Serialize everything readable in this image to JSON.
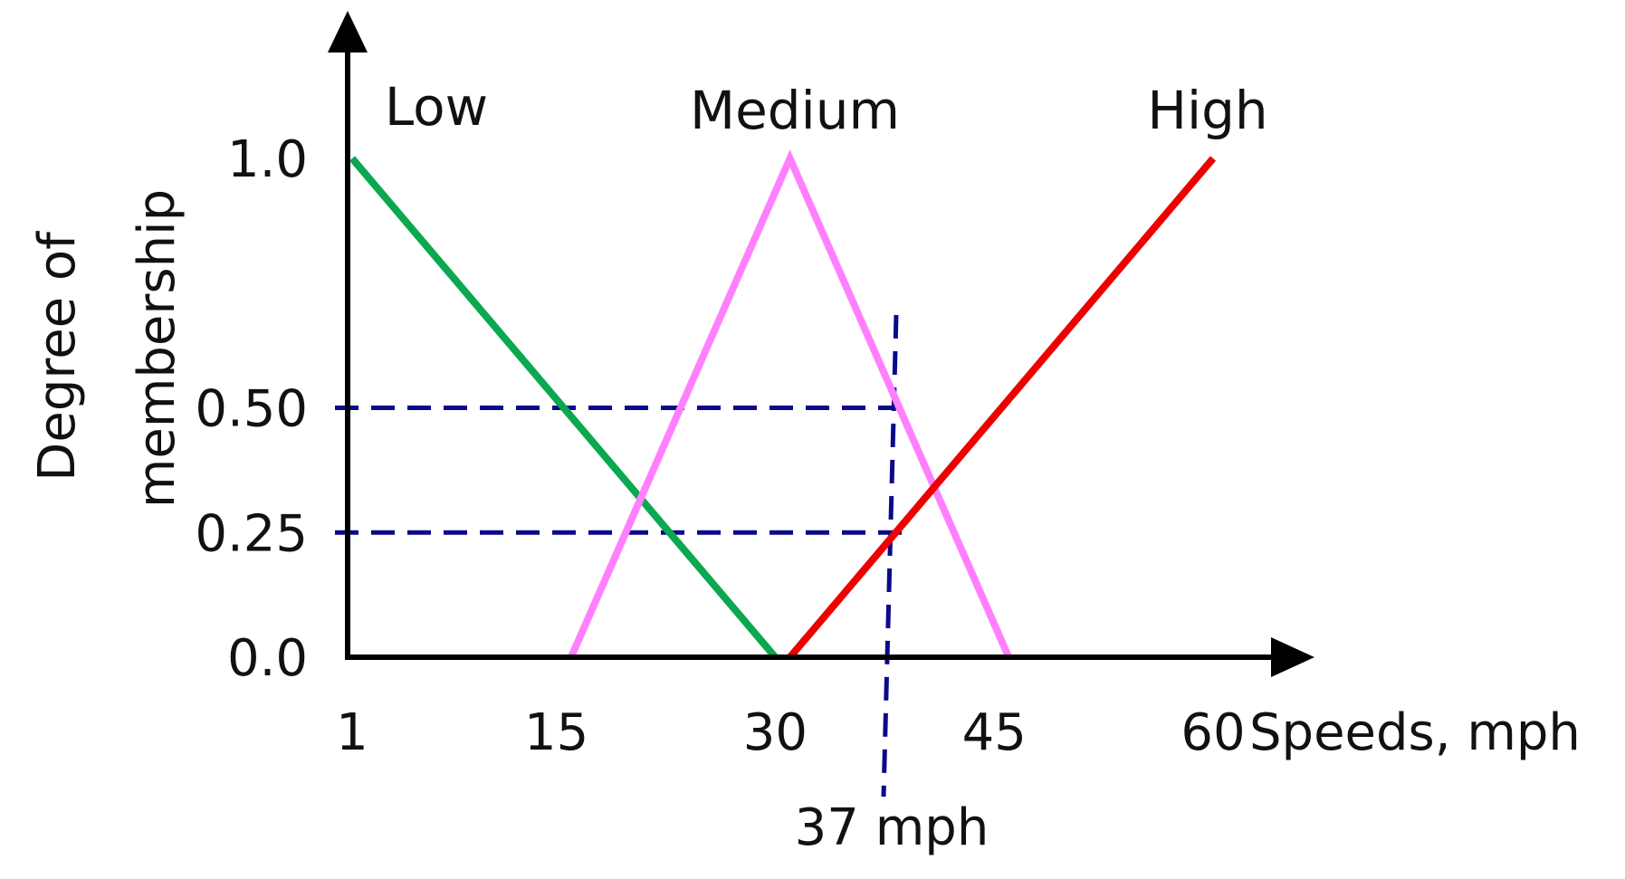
{
  "chart_data": {
    "type": "line",
    "title": "",
    "ylabel_lines": [
      "Degree of",
      "membership"
    ],
    "xlabel": "Speeds, mph",
    "x_ticks": [
      {
        "value": 1,
        "label": "1"
      },
      {
        "value": 15,
        "label": "15"
      },
      {
        "value": 30,
        "label": "30"
      },
      {
        "value": 45,
        "label": "45"
      },
      {
        "value": 60,
        "label": "60"
      }
    ],
    "y_ticks": [
      {
        "value": 0.0,
        "label": "0.0"
      },
      {
        "value": 0.25,
        "label": "0.25"
      },
      {
        "value": 0.5,
        "label": "0.50"
      },
      {
        "value": 1.0,
        "label": "1.0"
      }
    ],
    "xlim": [
      1,
      65
    ],
    "ylim": [
      0,
      1
    ],
    "grid": false,
    "series": [
      {
        "name": "Low",
        "color": "#0aa84f",
        "points": [
          [
            1,
            1.0
          ],
          [
            30,
            0.0
          ]
        ]
      },
      {
        "name": "Medium",
        "color": "#ff80ff",
        "points": [
          [
            16,
            0.0
          ],
          [
            31,
            1.0
          ],
          [
            46,
            0.0
          ]
        ]
      },
      {
        "name": "High",
        "color": "#ee0000",
        "points": [
          [
            31,
            0.0
          ],
          [
            60,
            1.0
          ]
        ]
      }
    ],
    "reference_lines": {
      "color": "#0a0a8a",
      "horizontal": [
        0.5,
        0.25
      ],
      "vertical": 37,
      "vertical_label": "37 mph"
    }
  }
}
